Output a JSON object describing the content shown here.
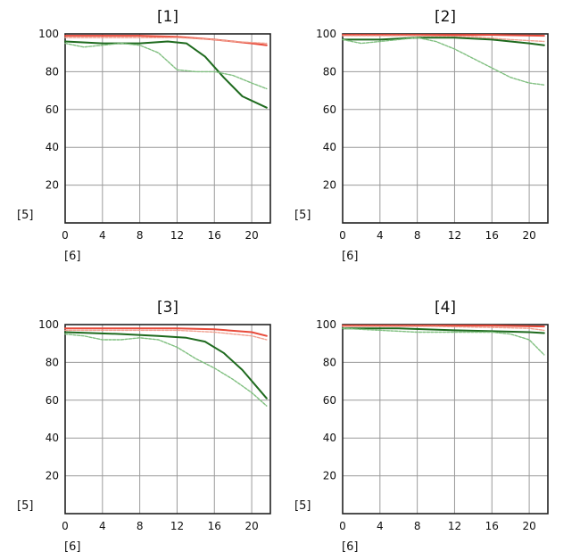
{
  "chart_data": [
    {
      "type": "line",
      "title": "[1]",
      "xlabel": "[6]",
      "ylabel": "[5]",
      "xlim": [
        0,
        22
      ],
      "ylim": [
        0,
        100
      ],
      "xticks": [
        "0",
        "4",
        "8",
        "12",
        "16",
        "20"
      ],
      "yticks": [
        "20",
        "40",
        "60",
        "80",
        "100"
      ],
      "grid": true,
      "series": [
        {
          "color": "#e84a3a",
          "style": "solid",
          "points": [
            [
              0,
              99
            ],
            [
              4,
              99
            ],
            [
              8,
              99
            ],
            [
              12,
              98.5
            ],
            [
              16,
              97
            ],
            [
              20,
              95
            ],
            [
              21.6,
              94
            ]
          ]
        },
        {
          "color": "#f0a090",
          "style": "dashed",
          "points": [
            [
              0,
              98
            ],
            [
              4,
              98
            ],
            [
              8,
              98
            ],
            [
              12,
              98
            ],
            [
              14,
              97.5
            ],
            [
              16,
              97
            ],
            [
              18,
              96
            ],
            [
              21.6,
              95
            ]
          ]
        },
        {
          "color": "#1e6a1e",
          "style": "solid",
          "points": [
            [
              0,
              96
            ],
            [
              4,
              95
            ],
            [
              8,
              95
            ],
            [
              11,
              96
            ],
            [
              13,
              95
            ],
            [
              15,
              88
            ],
            [
              17,
              77
            ],
            [
              19,
              67
            ],
            [
              21.6,
              61
            ]
          ]
        },
        {
          "color": "#7fbf7f",
          "style": "dashed",
          "points": [
            [
              0,
              95
            ],
            [
              2,
              93
            ],
            [
              4,
              94
            ],
            [
              6,
              95
            ],
            [
              8,
              94
            ],
            [
              10,
              90
            ],
            [
              12,
              81
            ],
            [
              14,
              80
            ],
            [
              16,
              80
            ],
            [
              18,
              78
            ],
            [
              20,
              74
            ],
            [
              21.6,
              71
            ]
          ]
        }
      ]
    },
    {
      "type": "line",
      "title": "[2]",
      "xlabel": "[6]",
      "ylabel": "[5]",
      "xlim": [
        0,
        22
      ],
      "ylim": [
        0,
        100
      ],
      "xticks": [
        "0",
        "4",
        "8",
        "12",
        "16",
        "20"
      ],
      "yticks": [
        "20",
        "40",
        "60",
        "80",
        "100"
      ],
      "grid": true,
      "series": [
        {
          "color": "#e84a3a",
          "style": "solid",
          "points": [
            [
              0,
              99.5
            ],
            [
              8,
              99.5
            ],
            [
              16,
              99.5
            ],
            [
              21.6,
              99
            ]
          ]
        },
        {
          "color": "#f0a090",
          "style": "dashed",
          "points": [
            [
              0,
              99
            ],
            [
              8,
              99
            ],
            [
              14,
              98.5
            ],
            [
              18,
              97
            ],
            [
              21.6,
              96
            ]
          ]
        },
        {
          "color": "#1e6a1e",
          "style": "solid",
          "points": [
            [
              0,
              97
            ],
            [
              4,
              97
            ],
            [
              8,
              98
            ],
            [
              12,
              98
            ],
            [
              16,
              97
            ],
            [
              20,
              95
            ],
            [
              21.6,
              94
            ]
          ]
        },
        {
          "color": "#7fbf7f",
          "style": "dashed",
          "points": [
            [
              0,
              97
            ],
            [
              2,
              95
            ],
            [
              4,
              96
            ],
            [
              6,
              97
            ],
            [
              8,
              98
            ],
            [
              10,
              96
            ],
            [
              12,
              92
            ],
            [
              14,
              87
            ],
            [
              16,
              82
            ],
            [
              18,
              77
            ],
            [
              20,
              74
            ],
            [
              21.6,
              73
            ]
          ]
        }
      ]
    },
    {
      "type": "line",
      "title": "[3]",
      "xlabel": "[6]",
      "ylabel": "[5]",
      "xlim": [
        0,
        22
      ],
      "ylim": [
        0,
        100
      ],
      "xticks": [
        "0",
        "4",
        "8",
        "12",
        "16",
        "20"
      ],
      "yticks": [
        "20",
        "40",
        "60",
        "80",
        "100"
      ],
      "grid": true,
      "series": [
        {
          "color": "#e84a3a",
          "style": "solid",
          "points": [
            [
              0,
              98
            ],
            [
              8,
              98
            ],
            [
              12,
              98
            ],
            [
              16,
              97.5
            ],
            [
              20,
              96
            ],
            [
              21.6,
              94
            ]
          ]
        },
        {
          "color": "#f0a090",
          "style": "dashed",
          "points": [
            [
              0,
              97
            ],
            [
              8,
              97
            ],
            [
              12,
              97
            ],
            [
              16,
              96
            ],
            [
              20,
              94
            ],
            [
              21.6,
              92
            ]
          ]
        },
        {
          "color": "#1e6a1e",
          "style": "solid",
          "points": [
            [
              0,
              96
            ],
            [
              6,
              95
            ],
            [
              10,
              94
            ],
            [
              13,
              93
            ],
            [
              15,
              91
            ],
            [
              17,
              85
            ],
            [
              19,
              76
            ],
            [
              21.6,
              61
            ]
          ]
        },
        {
          "color": "#7fbf7f",
          "style": "dashed",
          "points": [
            [
              0,
              95
            ],
            [
              2,
              94
            ],
            [
              4,
              92
            ],
            [
              6,
              92
            ],
            [
              8,
              93
            ],
            [
              10,
              92
            ],
            [
              12,
              88
            ],
            [
              14,
              82
            ],
            [
              16,
              77
            ],
            [
              18,
              71
            ],
            [
              20,
              64
            ],
            [
              21.6,
              57
            ]
          ]
        }
      ]
    },
    {
      "type": "line",
      "title": "[4]",
      "xlabel": "[6]",
      "ylabel": "[5]",
      "xlim": [
        0,
        22
      ],
      "ylim": [
        0,
        100
      ],
      "xticks": [
        "0",
        "4",
        "8",
        "12",
        "16",
        "20"
      ],
      "yticks": [
        "20",
        "40",
        "60",
        "80",
        "100"
      ],
      "grid": true,
      "series": [
        {
          "color": "#e84a3a",
          "style": "solid",
          "points": [
            [
              0,
              99.5
            ],
            [
              10,
              99.5
            ],
            [
              16,
              99.5
            ],
            [
              21.6,
              99
            ]
          ]
        },
        {
          "color": "#f0a090",
          "style": "dashed",
          "points": [
            [
              0,
              99
            ],
            [
              10,
              99
            ],
            [
              16,
              98.5
            ],
            [
              20,
              98
            ],
            [
              21.6,
              97
            ]
          ]
        },
        {
          "color": "#1e6a1e",
          "style": "solid",
          "points": [
            [
              0,
              98
            ],
            [
              6,
              98
            ],
            [
              12,
              97
            ],
            [
              16,
              96.5
            ],
            [
              20,
              96
            ],
            [
              21.6,
              95.5
            ]
          ]
        },
        {
          "color": "#7fbf7f",
          "style": "dashed",
          "points": [
            [
              0,
              98
            ],
            [
              4,
              97
            ],
            [
              8,
              96
            ],
            [
              12,
              96
            ],
            [
              16,
              96
            ],
            [
              18,
              95
            ],
            [
              20,
              92
            ],
            [
              21.6,
              84
            ]
          ]
        }
      ]
    }
  ]
}
